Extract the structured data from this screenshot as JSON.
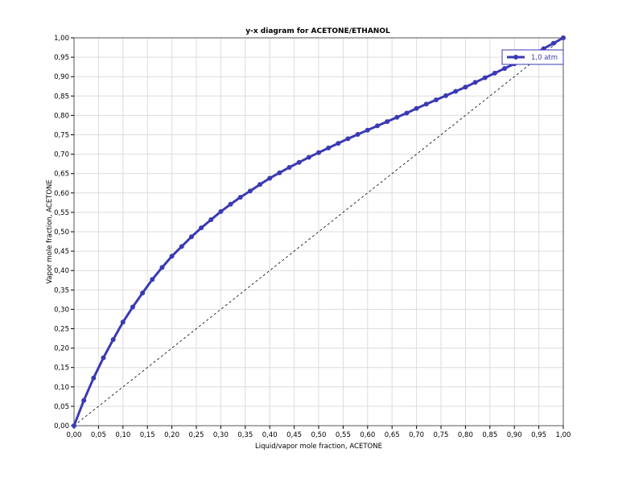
{
  "chart_data": {
    "type": "line",
    "title": "y-x diagram for ACETONE/ETHANOL",
    "xlabel": "Liquid/vapor mole fraction, ACETONE",
    "ylabel": "Vapor mole fraction, ACETONE",
    "xlim": [
      0,
      1
    ],
    "ylim": [
      0,
      1
    ],
    "x_ticks": [
      "0,00",
      "0,05",
      "0,10",
      "0,15",
      "0,20",
      "0,25",
      "0,30",
      "0,35",
      "0,40",
      "0,45",
      "0,50",
      "0,55",
      "0,60",
      "0,65",
      "0,70",
      "0,75",
      "0,80",
      "0,85",
      "0,90",
      "0,95",
      "1,00"
    ],
    "y_ticks": [
      "0,00",
      "0,05",
      "0,10",
      "0,15",
      "0,20",
      "0,25",
      "0,30",
      "0,35",
      "0,40",
      "0,45",
      "0,50",
      "0,55",
      "0,60",
      "0,65",
      "0,70",
      "0,75",
      "0,80",
      "0,85",
      "0,90",
      "0,95",
      "1,00"
    ],
    "grid": true,
    "legend_position": "top-right",
    "series": [
      {
        "name": "1,0 atm",
        "color": "#3a3ab4",
        "x": [
          0,
          0.02,
          0.04,
          0.06,
          0.08,
          0.1,
          0.12,
          0.14,
          0.16,
          0.18,
          0.2,
          0.22,
          0.24,
          0.26,
          0.28,
          0.3,
          0.32,
          0.34,
          0.36,
          0.38,
          0.4,
          0.42,
          0.44,
          0.46,
          0.48,
          0.5,
          0.52,
          0.54,
          0.56,
          0.58,
          0.6,
          0.62,
          0.64,
          0.66,
          0.68,
          0.7,
          0.72,
          0.74,
          0.76,
          0.78,
          0.8,
          0.82,
          0.84,
          0.86,
          0.88,
          0.9,
          0.92,
          0.94,
          0.96,
          0.98,
          1.0
        ],
        "y": [
          0,
          0.065,
          0.123,
          0.175,
          0.222,
          0.267,
          0.306,
          0.342,
          0.377,
          0.408,
          0.437,
          0.462,
          0.487,
          0.51,
          0.531,
          0.552,
          0.571,
          0.589,
          0.605,
          0.622,
          0.638,
          0.652,
          0.666,
          0.679,
          0.692,
          0.704,
          0.716,
          0.728,
          0.74,
          0.751,
          0.762,
          0.773,
          0.784,
          0.795,
          0.806,
          0.818,
          0.829,
          0.84,
          0.851,
          0.862,
          0.873,
          0.885,
          0.897,
          0.909,
          0.921,
          0.933,
          0.946,
          0.959,
          0.972,
          0.986,
          1.0
        ]
      }
    ],
    "reference_line": {
      "style": "dashed",
      "color": "#000000",
      "x": [
        0,
        1
      ],
      "y": [
        0,
        1
      ]
    }
  }
}
